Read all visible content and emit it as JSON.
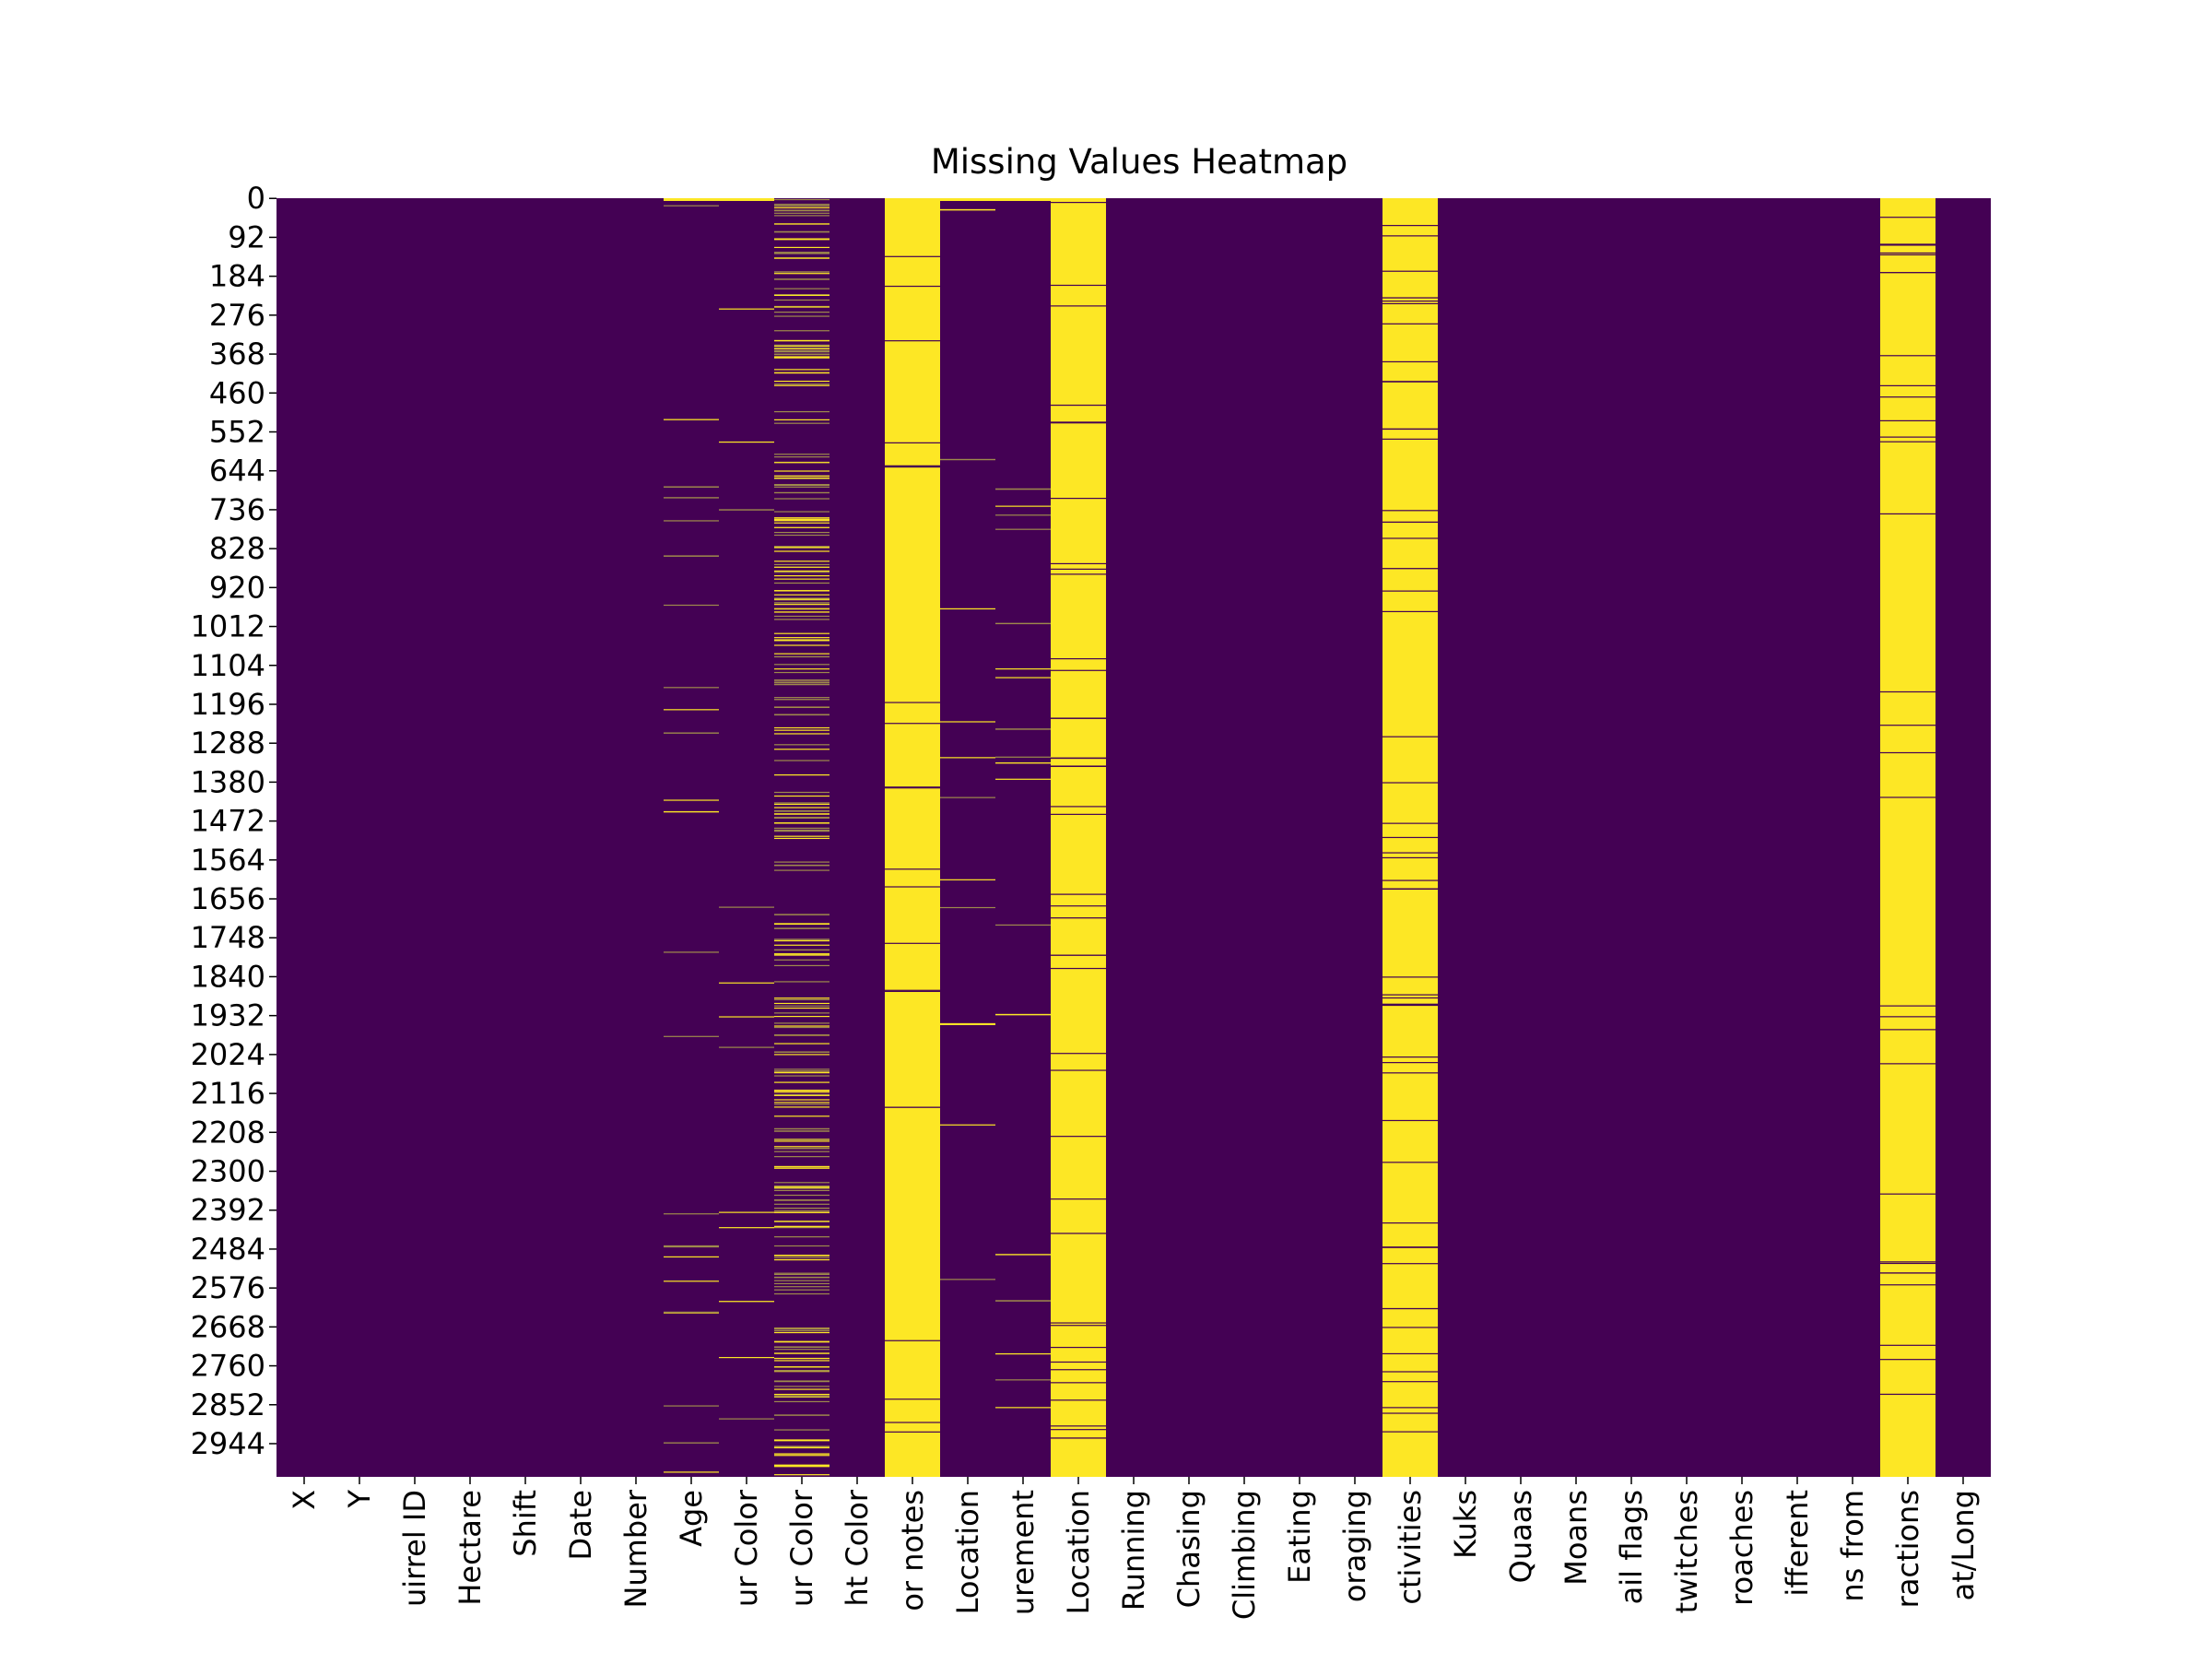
{
  "chart_data": {
    "type": "heatmap",
    "title": "Missing Values Heatmap",
    "xlabel": "",
    "ylabel": "",
    "colormap": "viridis",
    "colorbar": false,
    "colors": {
      "present": "#440154",
      "missing": "#fde725",
      "mixed": "#9e8a4c"
    },
    "row_count": 3023,
    "row_tick_labels": [
      "0",
      "92",
      "184",
      "276",
      "368",
      "460",
      "552",
      "644",
      "736",
      "828",
      "920",
      "1012",
      "1104",
      "1196",
      "1288",
      "1380",
      "1472",
      "1564",
      "1656",
      "1748",
      "1840",
      "1932",
      "2024",
      "2116",
      "2208",
      "2300",
      "2392",
      "2484",
      "2576",
      "2668",
      "2760",
      "2852",
      "2944"
    ],
    "columns": [
      "X",
      "Y",
      "uirrel ID",
      "Hectare",
      "Shift",
      "Date",
      "Number",
      "Age",
      "ur Color",
      "ur Color",
      "ht Color",
      "or notes",
      "Location",
      "urement",
      "Location",
      "Running",
      "Chasing",
      "Climbing",
      "Eating",
      "oraging",
      "ctivities",
      "Kuks",
      "Quaas",
      "Moans",
      "ail flags",
      "twitches",
      "roaches",
      "ifferent",
      "ns from",
      "ractions",
      "at/Long"
    ],
    "missing_fraction": [
      0,
      0,
      0,
      0,
      0,
      0,
      0,
      0.04,
      0.02,
      0.45,
      0,
      0.96,
      0.02,
      0.03,
      0.92,
      0,
      0,
      0,
      0,
      0,
      0.9,
      0,
      0,
      0,
      0,
      0,
      0,
      0,
      0,
      0.94,
      0
    ]
  }
}
